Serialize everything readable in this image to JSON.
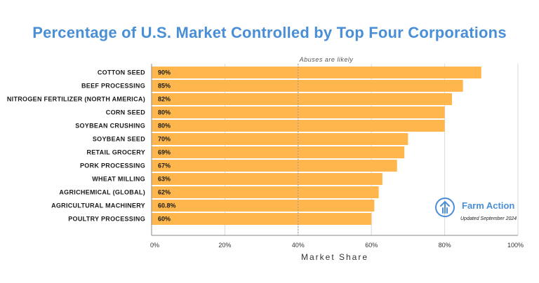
{
  "chart_data": {
    "type": "bar",
    "orientation": "horizontal",
    "title": "Percentage of U.S. Market Controlled by Top Four Corporations",
    "xlabel": "Market Share",
    "ylabel": "",
    "xlim": [
      0,
      100
    ],
    "ticks": [
      "0%",
      "20%",
      "40%",
      "60%",
      "80%",
      "100%"
    ],
    "categories": [
      "COTTON SEED",
      "BEEF PROCESSING",
      "NITROGEN FERTILIZER (NORTH AMERICA)",
      "CORN SEED",
      "SOYBEAN CRUSHING",
      "SOYBEAN SEED",
      "RETAIL GROCERY",
      "PORK PROCESSING",
      "WHEAT MILLING",
      "AGRICHEMICAL (GLOBAL)",
      "AGRICULTURAL MACHINERY",
      "POULTRY PROCESSING"
    ],
    "values": [
      90,
      85,
      82,
      80,
      80,
      70,
      69,
      67,
      63,
      62,
      60.8,
      60
    ],
    "value_labels": [
      "90%",
      "85%",
      "82%",
      "80%",
      "80%",
      "70%",
      "69%",
      "67%",
      "63%",
      "62%",
      "60.8%",
      "60%"
    ],
    "reference_line": {
      "value": 40,
      "label": "Abuses are likely"
    },
    "grid": true,
    "colors": {
      "bar": "#ffb74d",
      "title": "#4a8fd6",
      "grid": "#d8d8d8",
      "reference": "#999999"
    }
  },
  "logo": {
    "name": "Farm Action",
    "updated": "Updated September 2024",
    "icon": "farm-action-arrow-icon",
    "color": "#4a8fd6"
  }
}
